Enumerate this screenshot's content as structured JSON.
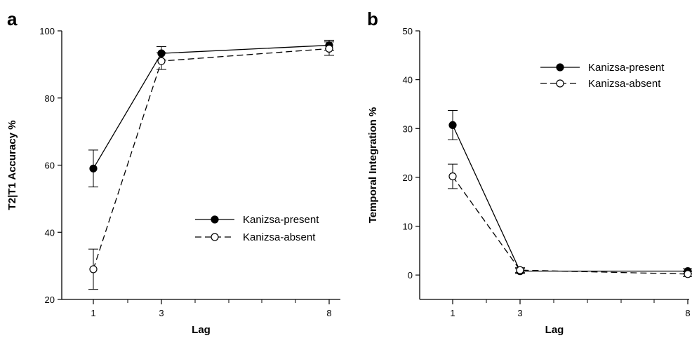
{
  "chart_data": [
    {
      "panel_label": "a",
      "type": "line",
      "xlabel": "Lag",
      "ylabel": "T2|T1 Accuracy %",
      "x": [
        1,
        3,
        8
      ],
      "x_tick_labels": [
        "1",
        "3",
        "8"
      ],
      "ylim": [
        20,
        100
      ],
      "y_ticks": [
        20,
        40,
        60,
        80,
        100
      ],
      "grid": false,
      "legend_position": "lower-right",
      "series": [
        {
          "name": "Kanizsa-present",
          "marker": "filled-circle",
          "line": "solid",
          "values": [
            59,
            93.3,
            95.7
          ],
          "errors": [
            5.5,
            2,
            1.5
          ]
        },
        {
          "name": "Kanizsa-absent",
          "marker": "open-circle",
          "line": "dashed",
          "values": [
            29,
            91,
            94.7
          ],
          "errors": [
            6,
            2.5,
            2
          ]
        }
      ]
    },
    {
      "panel_label": "b",
      "type": "line",
      "xlabel": "Lag",
      "ylabel": "Temporal Integration %",
      "x": [
        1,
        3,
        8
      ],
      "x_tick_labels": [
        "1",
        "3",
        "8"
      ],
      "ylim": [
        -5,
        50
      ],
      "y_ticks": [
        0,
        10,
        20,
        30,
        40,
        50
      ],
      "grid": false,
      "legend_position": "top-right",
      "series": [
        {
          "name": "Kanizsa-present",
          "marker": "filled-circle",
          "line": "solid",
          "values": [
            30.7,
            0.8,
            0.8
          ],
          "errors": [
            3,
            0.5,
            0.5
          ]
        },
        {
          "name": "Kanizsa-absent",
          "marker": "open-circle",
          "line": "dashed",
          "values": [
            20.2,
            1.0,
            0.2
          ],
          "errors": [
            2.5,
            0.5,
            0.5
          ]
        }
      ]
    }
  ]
}
